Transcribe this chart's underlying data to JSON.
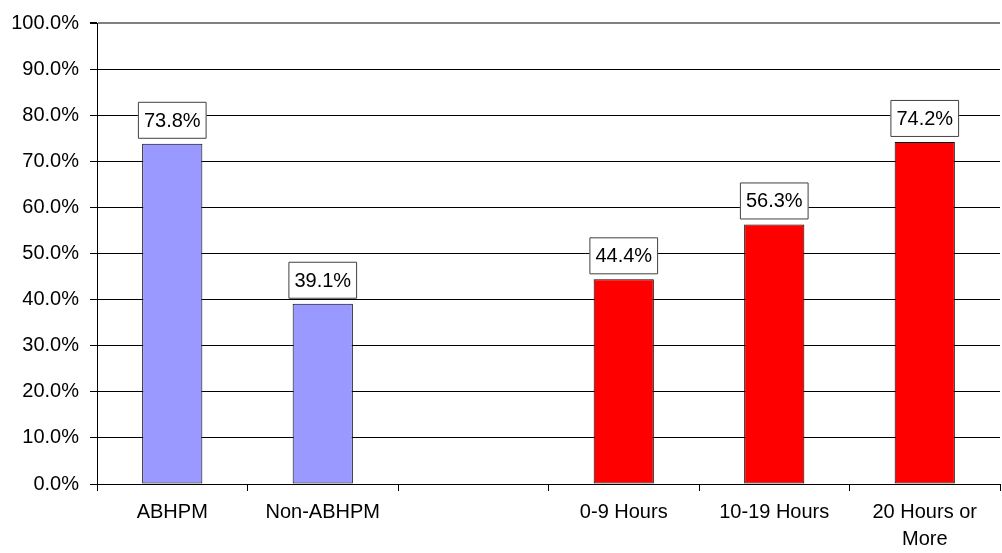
{
  "chart_data": {
    "type": "bar",
    "categories": [
      "ABHPM",
      "Non-ABHPM",
      null,
      "0-9 Hours",
      "10-19 Hours",
      "20 Hours or More"
    ],
    "values": [
      73.8,
      39.1,
      null,
      44.4,
      56.3,
      74.2
    ],
    "colors": [
      "#9999ff",
      "#9999ff",
      null,
      "#ff0000",
      "#ff0000",
      "#ff0000"
    ],
    "value_labels": [
      "73.8%",
      "39.1%",
      null,
      "44.4%",
      "56.3%",
      "74.2%"
    ],
    "ylim": [
      0,
      100
    ],
    "yticks": [
      {
        "value": 0,
        "label": "0.0%"
      },
      {
        "value": 10,
        "label": "10.0%"
      },
      {
        "value": 20,
        "label": "20.0%"
      },
      {
        "value": 30,
        "label": "30.0%"
      },
      {
        "value": 40,
        "label": "40.0%"
      },
      {
        "value": 50,
        "label": "50.0%"
      },
      {
        "value": 60,
        "label": "60.0%"
      },
      {
        "value": 70,
        "label": "70.0%"
      },
      {
        "value": 80,
        "label": "80.0%"
      },
      {
        "value": 90,
        "label": "90.0%"
      },
      {
        "value": 100,
        "label": "100.0%"
      }
    ],
    "grid": "y"
  }
}
